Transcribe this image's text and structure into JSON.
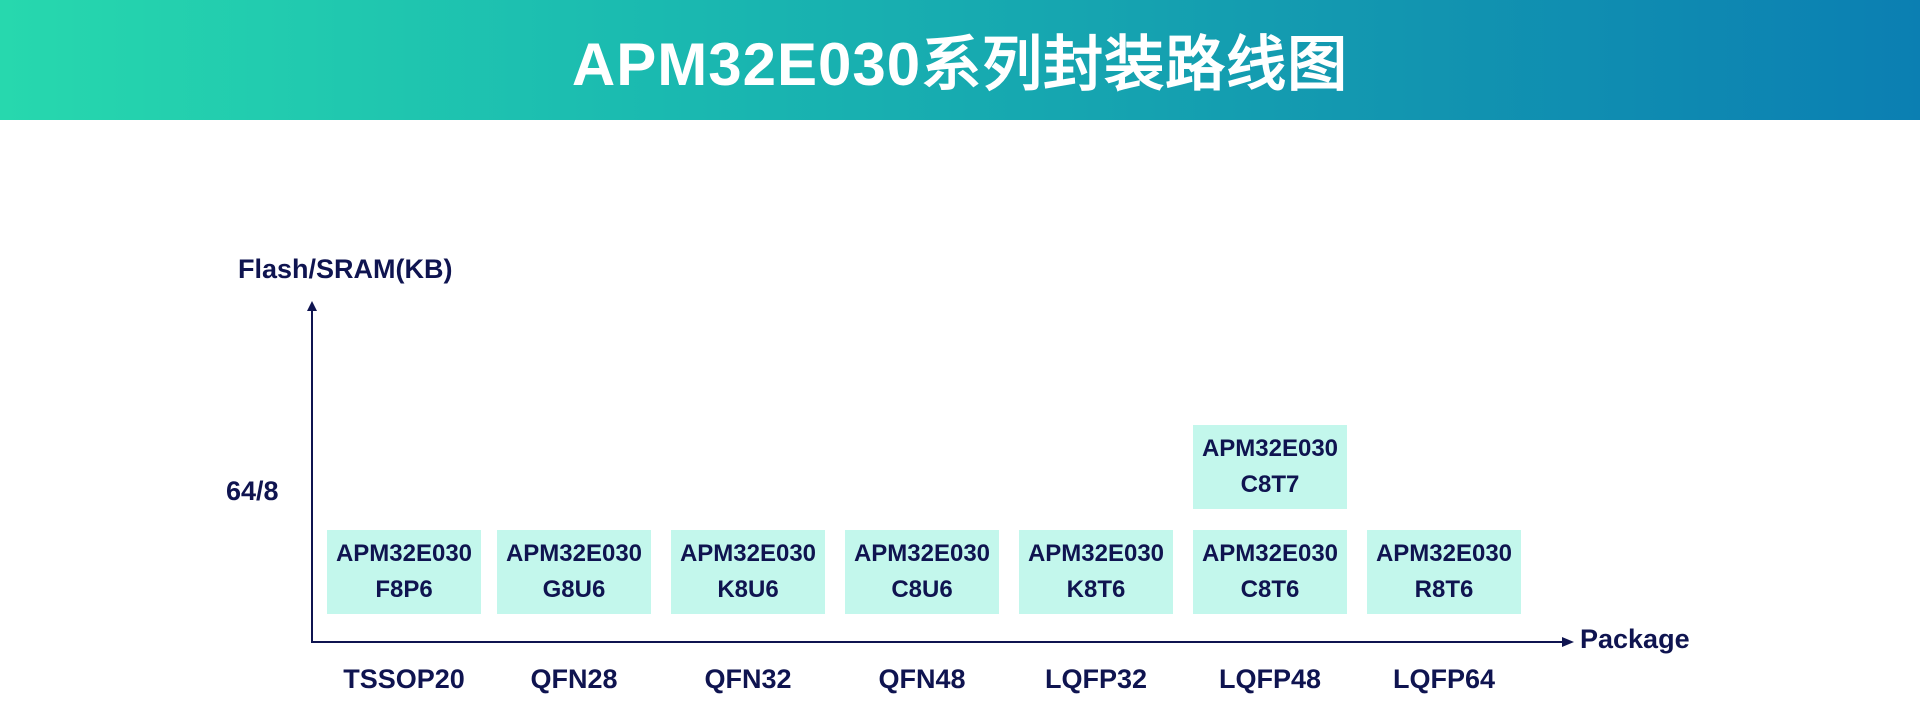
{
  "header": {
    "title": "APM32E030系列封装路线图"
  },
  "axes": {
    "y_label": "Flash/SRAM(KB)",
    "x_label": "Package",
    "y_tick": "64/8"
  },
  "packages": [
    {
      "label": "TSSOP20",
      "parts": [
        {
          "line1": "APM32E030",
          "line2": "F8P6"
        }
      ]
    },
    {
      "label": "QFN28",
      "parts": [
        {
          "line1": "APM32E030",
          "line2": "G8U6"
        }
      ]
    },
    {
      "label": "QFN32",
      "parts": [
        {
          "line1": "APM32E030",
          "line2": "K8U6"
        }
      ]
    },
    {
      "label": "QFN48",
      "parts": [
        {
          "line1": "APM32E030",
          "line2": "C8U6"
        }
      ]
    },
    {
      "label": "LQFP32",
      "parts": [
        {
          "line1": "APM32E030",
          "line2": "K8T6"
        }
      ]
    },
    {
      "label": "LQFP48",
      "parts": [
        {
          "line1": "APM32E030",
          "line2": "C8T6"
        },
        {
          "line1": "APM32E030",
          "line2": "C8T7"
        }
      ]
    },
    {
      "label": "LQFP64",
      "parts": [
        {
          "line1": "APM32E030",
          "line2": "R8T6"
        }
      ]
    }
  ],
  "colors": {
    "banner_start": "#27d8ae",
    "banner_end": "#0b7fb2",
    "chip_fill": "#c3f7ec",
    "text": "#0f1450"
  }
}
